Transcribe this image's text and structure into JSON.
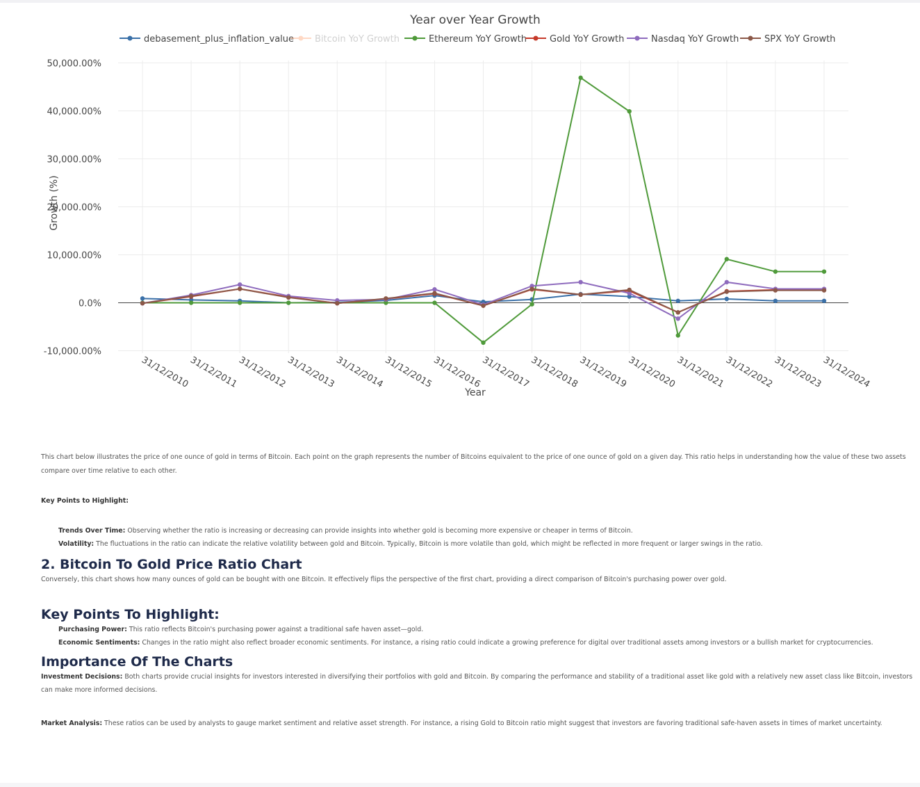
{
  "chart_data": {
    "type": "line",
    "title": "Year over Year Growth",
    "xlabel": "Year",
    "ylabel": "Growth (%)",
    "categories": [
      "31/12/2010",
      "31/12/2011",
      "31/12/2012",
      "31/12/2013",
      "31/12/2014",
      "31/12/2015",
      "31/12/2016",
      "31/12/2017",
      "31/12/2018",
      "31/12/2019",
      "31/12/2020",
      "31/12/2021",
      "31/12/2022",
      "31/12/2023",
      "31/12/2024"
    ],
    "ylim": [
      -10500,
      50500
    ],
    "yticks": [
      -10000,
      0,
      10000,
      20000,
      30000,
      40000,
      50000
    ],
    "ytick_labels": [
      "-10,000.00%",
      "0.0%",
      "10,000.00%",
      "20,000.00%",
      "30,000.00%",
      "40,000.00%",
      "50,000.00%"
    ],
    "grid": true,
    "legend_position": "top",
    "series": [
      {
        "name": "debasement_plus_inflation_value",
        "color": "#3a70a8",
        "hidden": false,
        "values": [
          900,
          600,
          400,
          0,
          100,
          500,
          1500,
          200,
          700,
          1800,
          1300,
          400,
          800,
          400,
          400
        ]
      },
      {
        "name": "Bitcoin YoY Growth",
        "color": "#ffbb96",
        "hidden": true,
        "values": [
          null,
          null,
          null,
          null,
          null,
          null,
          null,
          null,
          null,
          null,
          null,
          null,
          null,
          null,
          null
        ]
      },
      {
        "name": "Ethereum YoY Growth",
        "color": "#4f9a3a",
        "hidden": false,
        "values": [
          0,
          0,
          0,
          0,
          0,
          0,
          0,
          -8300,
          -300,
          46900,
          39900,
          -6800,
          9100,
          6500,
          6500
        ]
      },
      {
        "name": "Gold YoY Growth",
        "color": "#c63a2a",
        "hidden": false,
        "values": [
          -100,
          1300,
          2900,
          1200,
          -100,
          800,
          1900,
          -600,
          2800,
          1700,
          2500,
          -2000,
          2400,
          2700,
          2700
        ]
      },
      {
        "name": "Nasdaq YoY Growth",
        "color": "#8e6bbd",
        "hidden": false,
        "values": [
          -100,
          1600,
          3800,
          1400,
          500,
          700,
          2800,
          -400,
          3500,
          4300,
          2000,
          -3300,
          4300,
          2900,
          2900
        ]
      },
      {
        "name": "SPX YoY Growth",
        "color": "#8b5848",
        "hidden": false,
        "values": [
          -100,
          1400,
          2900,
          1100,
          -100,
          900,
          2000,
          -600,
          2900,
          1700,
          2700,
          -2000,
          2300,
          2600,
          2600
        ]
      }
    ]
  },
  "text": {
    "intro": "This chart below illustrates the price of one ounce of gold in terms of Bitcoin. Each point on the graph represents the number of Bitcoins equivalent to the price of one ounce of gold on a given day. This ratio helps in understanding how the value of these two assets compare over time relative to each other.",
    "kp1_heading": "Key Points to Highlight:",
    "kp1_a_label": "Trends Over Time:",
    "kp1_a_text": " Observing whether the ratio is increasing or decreasing can provide insights into whether gold is becoming more expensive or cheaper in terms of Bitcoin.",
    "kp1_b_label": "Volatility:",
    "kp1_b_text": " The fluctuations in the ratio can indicate the relative volatility between gold and Bitcoin. Typically, Bitcoin is more volatile than gold, which might be reflected in more frequent or larger swings in the ratio.",
    "h_ratio": "2. Bitcoin To Gold Price Ratio Chart",
    "ratio_desc": "Conversely, this chart shows how many ounces of gold can be bought with one Bitcoin. It effectively flips the perspective of the first chart, providing a direct comparison of Bitcoin's purchasing power over gold.",
    "h_kp2": "Key Points To Highlight:",
    "kp2_a_label": "Purchasing Power:",
    "kp2_a_text": " This ratio reflects Bitcoin's purchasing power against a traditional safe haven asset—gold.",
    "kp2_b_label": "Economic Sentiments:",
    "kp2_b_text": " Changes in the ratio might also reflect broader economic sentiments. For instance, a rising ratio could indicate a growing preference for digital over traditional assets among investors or a bullish market for cryptocurrencies.",
    "h_imp": "Importance Of The Charts",
    "inv_label": "Investment Decisions:",
    "inv_text": " Both charts provide crucial insights for investors interested in diversifying their portfolios with gold and Bitcoin. By comparing the performance and stability of a traditional asset like gold with a relatively new asset class like Bitcoin, investors can make more informed decisions.",
    "mkt_label": "Market Analysis:",
    "mkt_text": " These ratios can be used by analysts to gauge market sentiment and relative asset strength. For instance, a rising Gold to Bitcoin ratio might suggest that investors are favoring traditional safe-haven assets in times of market uncertainty."
  }
}
